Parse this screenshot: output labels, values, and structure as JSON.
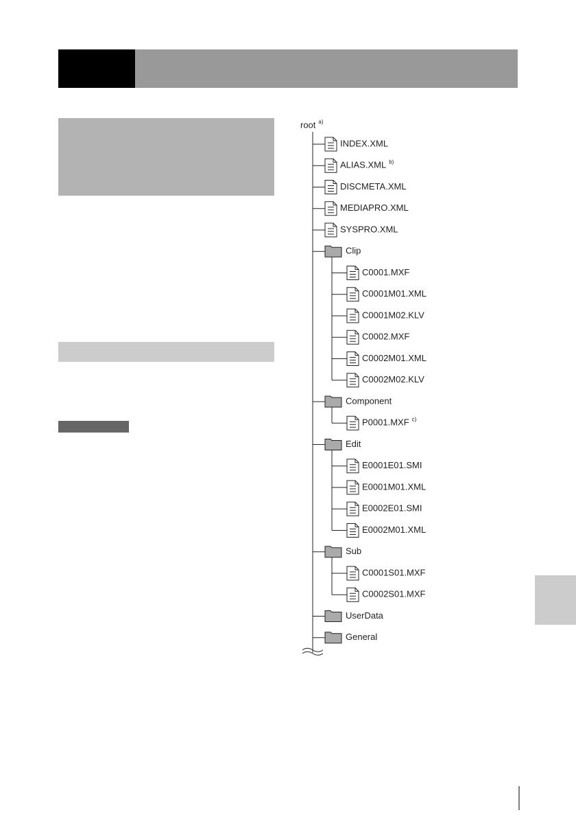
{
  "tree": {
    "root": {
      "label": "root",
      "note": "a)"
    },
    "files": [
      "INDEX.XML",
      {
        "name": "ALIAS.XML",
        "note": "b)"
      },
      "DISCMETA.XML",
      "MEDIAPRO.XML",
      "SYSPRO.XML"
    ],
    "folders": [
      {
        "name": "Clip",
        "files": [
          "C0001.MXF",
          "C0001M01.XML",
          "C0001M02.KLV",
          "C0002.MXF",
          "C0002M01.XML",
          "C0002M02.KLV"
        ]
      },
      {
        "name": "Component",
        "files": [
          {
            "name": "P0001.MXF",
            "note": "c)"
          }
        ]
      },
      {
        "name": "Edit",
        "files": [
          "E0001E01.SMI",
          "E0001M01.XML",
          "E0002E01.SMI",
          "E0002M01.XML"
        ]
      },
      {
        "name": "Sub",
        "files": [
          "C0001S01.MXF",
          "C0002S01.MXF"
        ]
      },
      {
        "name": "UserData",
        "files": []
      },
      {
        "name": "General",
        "files": []
      }
    ]
  }
}
